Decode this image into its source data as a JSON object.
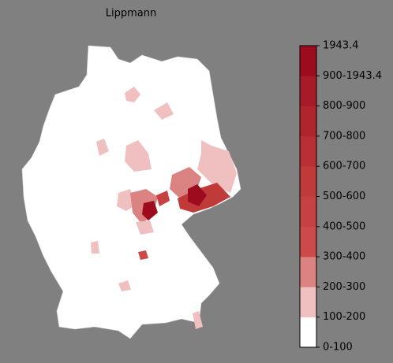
{
  "title": "Lippmann",
  "legend": {
    "labels": [
      "1943.4",
      "900-1943.4",
      "800-900",
      "700-800",
      "600-700",
      "500-600",
      "400-500",
      "300-400",
      "200-300",
      "100-200",
      "0-100"
    ],
    "colors": [
      "#ffffff",
      "#f0c0c0",
      "#db8282",
      "#cc4a4a",
      "#c64242",
      "#c03a3a",
      "#b83036",
      "#b0242e",
      "#a81a28",
      "#9c0c1e"
    ]
  }
}
